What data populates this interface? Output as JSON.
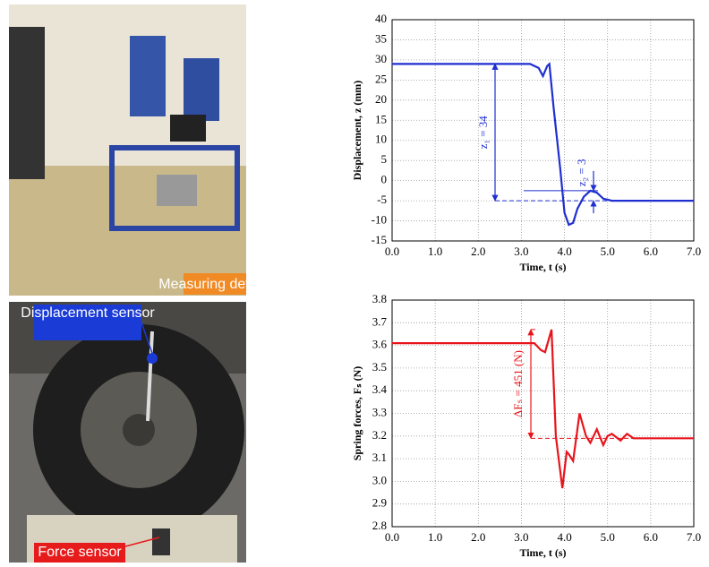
{
  "photos": {
    "top_label": "Measuring device",
    "bottom_labels": [
      "Displacement sensor",
      "Force sensor"
    ]
  },
  "chart_data": [
    {
      "type": "line",
      "y_label": "Displacement, z (mm)",
      "x_label": "Time, t (s)",
      "color": "#1f2fd0",
      "annotations": [
        "z₁ = 34",
        "z₂ = 3"
      ],
      "x": [
        0,
        3.2,
        3.4,
        3.5,
        3.6,
        3.65,
        3.75,
        3.9,
        4.0,
        4.1,
        4.2,
        4.3,
        4.45,
        4.6,
        4.75,
        4.9,
        5.1,
        7
      ],
      "values": [
        29,
        29,
        28,
        26,
        28.5,
        29,
        18,
        3,
        -8,
        -11,
        -10.5,
        -7,
        -4,
        -2.5,
        -3,
        -4.5,
        -5,
        -5
      ],
      "xlim": [
        0,
        7
      ],
      "xticks": [
        {
          "value": 0,
          "label": "0.0"
        },
        {
          "value": 1,
          "label": "1.0"
        },
        {
          "value": 2,
          "label": "2.0"
        },
        {
          "value": 3,
          "label": "3.0"
        },
        {
          "value": 4,
          "label": "4.0"
        },
        {
          "value": 5,
          "label": "5.0"
        },
        {
          "value": 6,
          "label": "6.0"
        },
        {
          "value": 7,
          "label": "7.0"
        }
      ],
      "ylim": [
        -15,
        40
      ],
      "yticks": [
        -15,
        -10,
        -5,
        0,
        5,
        10,
        15,
        20,
        25,
        30,
        35,
        40
      ],
      "grid": true
    },
    {
      "type": "line",
      "y_label": "Spring forces, Fₛ (N)",
      "x_label": "Time, t (s)",
      "color": "#e8141c",
      "annotations": [
        "ΔFₛ = 451 (N)"
      ],
      "x": [
        0,
        3.3,
        3.45,
        3.55,
        3.7,
        3.8,
        3.95,
        4.05,
        4.1,
        4.2,
        4.35,
        4.5,
        4.6,
        4.75,
        4.9,
        5.0,
        5.1,
        5.3,
        5.45,
        5.6,
        7
      ],
      "values": [
        3.61,
        3.61,
        3.58,
        3.57,
        3.67,
        3.2,
        2.97,
        3.13,
        3.12,
        3.09,
        3.3,
        3.2,
        3.17,
        3.23,
        3.16,
        3.2,
        3.21,
        3.18,
        3.21,
        3.19,
        3.19
      ],
      "xlim": [
        0,
        7
      ],
      "xticks": [
        {
          "value": 0,
          "label": "0.0"
        },
        {
          "value": 1,
          "label": "1.0"
        },
        {
          "value": 2,
          "label": "2.0"
        },
        {
          "value": 3,
          "label": "3.0"
        },
        {
          "value": 4,
          "label": "4.0"
        },
        {
          "value": 5,
          "label": "5.0"
        },
        {
          "value": 6,
          "label": "6.0"
        },
        {
          "value": 7,
          "label": "7.0"
        }
      ],
      "ylim": [
        2.8,
        3.8
      ],
      "yticks": [
        2.8,
        2.9,
        {
          "value": 3,
          "label": "3.0"
        },
        3.1,
        3.2,
        3.3,
        3.4,
        3.5,
        3.6,
        3.7,
        3.8
      ],
      "grid": true
    }
  ]
}
